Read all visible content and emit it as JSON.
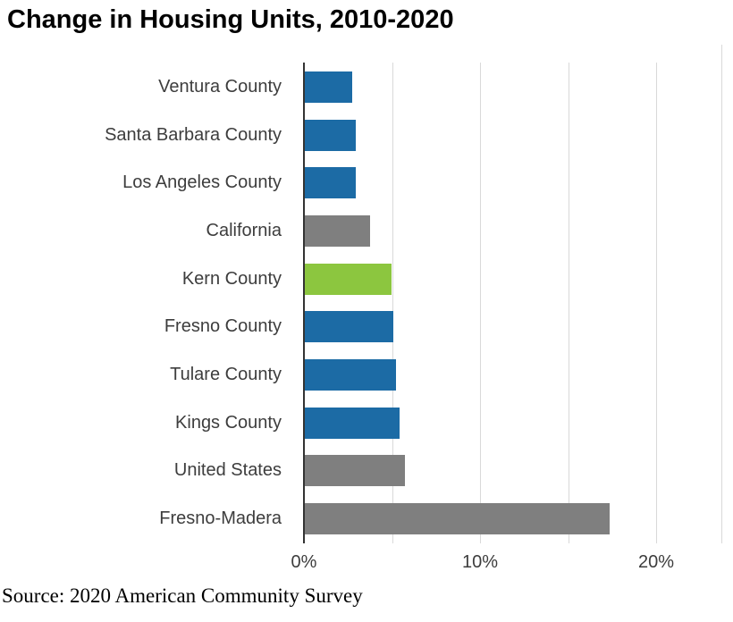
{
  "page": {
    "title": "Change in Housing Units, 2010-2020",
    "source": "Source: 2020 American Community Survey"
  },
  "chart_data": {
    "type": "bar",
    "orientation": "horizontal",
    "title": "Change in Housing Units, 2010-2020",
    "xlabel": "",
    "ylabel": "",
    "unit": "%",
    "categories": [
      "Ventura County",
      "Santa Barbara County",
      "Los Angeles County",
      "California",
      "Kern County",
      "Fresno County",
      "Tulare County",
      "Kings County",
      "United States",
      "Fresno-Madera"
    ],
    "values": [
      2.7,
      2.9,
      2.9,
      3.7,
      4.9,
      5.0,
      5.2,
      5.4,
      5.7,
      17.3
    ],
    "bar_color_keys": [
      "blue",
      "blue",
      "blue",
      "gray",
      "green",
      "blue",
      "blue",
      "blue",
      "gray",
      "gray"
    ],
    "highlight_category": "Kern County",
    "colors": {
      "blue": "#1c6ba5",
      "gray": "#7f7f7f",
      "green": "#8cc63f",
      "axis_line": "#333333",
      "gridline": "#d9d9d9",
      "label_text": "#3d3d3d",
      "title_text": "#000000"
    },
    "xlim": [
      0,
      23.8
    ],
    "x_ticks": [
      {
        "label": "0%",
        "value": 0
      },
      {
        "label": "10%",
        "value": 10
      },
      {
        "label": "20%",
        "value": 20
      }
    ],
    "gridline_values": [
      5,
      10,
      15,
      20
    ],
    "grid": "vertical",
    "legend_position": "none"
  }
}
